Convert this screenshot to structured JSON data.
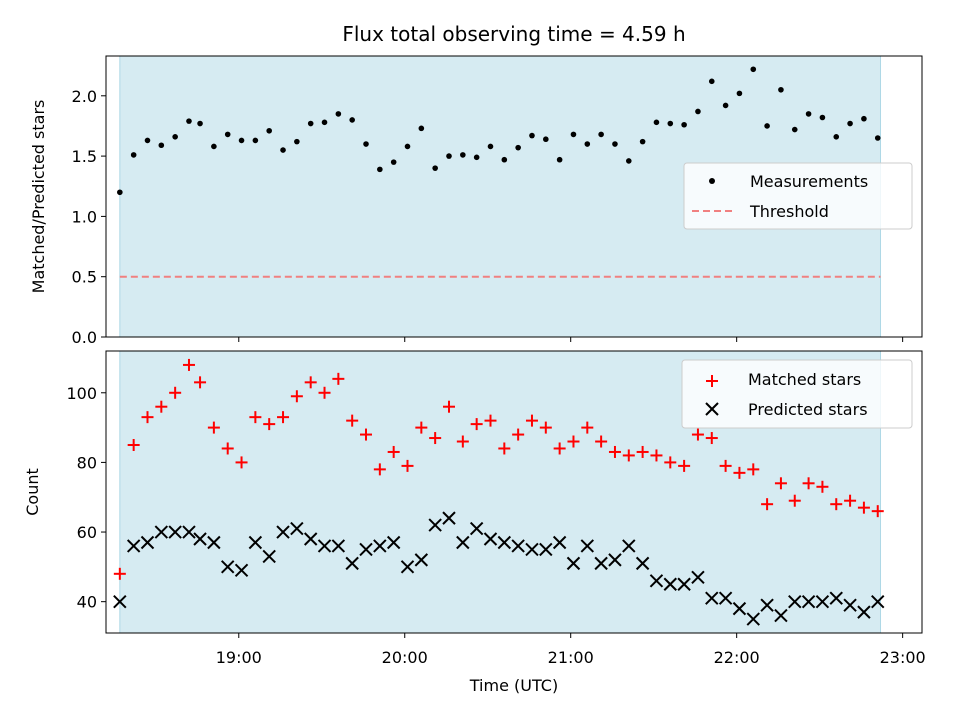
{
  "chart_data": [
    {
      "type": "scatter",
      "title": "Flux total observing time = 4.59 h",
      "xlabel": "",
      "ylabel": "Matched/Predicted stars",
      "ylim": [
        0.0,
        2.33
      ],
      "yticks": [
        0.0,
        0.5,
        1.0,
        1.5,
        2.0
      ],
      "yticklabels": [
        "0.0",
        "0.5",
        "1.0",
        "1.5",
        "2.0"
      ],
      "xlim": [
        "18:12",
        "23:07"
      ],
      "shaded_span": [
        "18:17",
        "22:52"
      ],
      "shade_color": "#add8e6",
      "grid": false,
      "legend_position": "center-right",
      "series": [
        {
          "name": "Measurements",
          "marker": "dot",
          "color": "#000000",
          "x": [
            "18:17",
            "18:22",
            "18:27",
            "18:32",
            "18:37",
            "18:42",
            "18:46",
            "18:51",
            "18:56",
            "19:01",
            "19:06",
            "19:11",
            "19:16",
            "19:21",
            "19:26",
            "19:31",
            "19:36",
            "19:41",
            "19:46",
            "19:51",
            "19:56",
            "20:01",
            "20:06",
            "20:11",
            "20:16",
            "20:21",
            "20:26",
            "20:31",
            "20:36",
            "20:41",
            "20:46",
            "20:51",
            "20:56",
            "21:01",
            "21:06",
            "21:11",
            "21:16",
            "21:21",
            "21:26",
            "21:31",
            "21:36",
            "21:41",
            "21:46",
            "21:51",
            "21:56",
            "22:01",
            "22:06",
            "22:11",
            "22:16",
            "22:21",
            "22:26",
            "22:31",
            "22:36",
            "22:41",
            "22:46",
            "22:51"
          ],
          "y": [
            1.2,
            1.51,
            1.63,
            1.59,
            1.66,
            1.79,
            1.77,
            1.58,
            1.68,
            1.63,
            1.63,
            1.71,
            1.55,
            1.62,
            1.77,
            1.78,
            1.85,
            1.8,
            1.6,
            1.39,
            1.45,
            1.58,
            1.73,
            1.4,
            1.5,
            1.51,
            1.49,
            1.58,
            1.47,
            1.57,
            1.67,
            1.64,
            1.47,
            1.68,
            1.6,
            1.68,
            1.6,
            1.46,
            1.62,
            1.78,
            1.77,
            1.76,
            1.87,
            2.12,
            1.92,
            2.02,
            2.22,
            1.75,
            2.05,
            1.72,
            1.85,
            1.82,
            1.66,
            1.77,
            1.81,
            1.65
          ]
        },
        {
          "name": "Threshold",
          "type": "line",
          "style": "dashed",
          "color": "#f08080",
          "x": [
            "18:17",
            "22:52"
          ],
          "y": [
            0.5,
            0.5
          ]
        }
      ]
    },
    {
      "type": "scatter",
      "xlabel": "Time (UTC)",
      "ylabel": "Count",
      "ylim": [
        31,
        112
      ],
      "yticks": [
        40,
        60,
        80,
        100
      ],
      "yticklabels": [
        "40",
        "60",
        "80",
        "100"
      ],
      "xlim": [
        "18:12",
        "23:07"
      ],
      "xticks": [
        "19:00",
        "20:00",
        "21:00",
        "22:00",
        "23:00"
      ],
      "xticklabels": [
        "19:00",
        "20:00",
        "21:00",
        "22:00",
        "23:00"
      ],
      "shaded_span": [
        "18:17",
        "22:52"
      ],
      "shade_color": "#add8e6",
      "grid": false,
      "legend_position": "upper-right",
      "series": [
        {
          "name": "Matched stars",
          "marker": "plus",
          "color": "#ff0000",
          "x": [
            "18:17",
            "18:22",
            "18:27",
            "18:32",
            "18:37",
            "18:42",
            "18:46",
            "18:51",
            "18:56",
            "19:01",
            "19:06",
            "19:11",
            "19:16",
            "19:21",
            "19:26",
            "19:31",
            "19:36",
            "19:41",
            "19:46",
            "19:51",
            "19:56",
            "20:01",
            "20:06",
            "20:11",
            "20:16",
            "20:21",
            "20:26",
            "20:31",
            "20:36",
            "20:41",
            "20:46",
            "20:51",
            "20:56",
            "21:01",
            "21:06",
            "21:11",
            "21:16",
            "21:21",
            "21:26",
            "21:31",
            "21:36",
            "21:41",
            "21:46",
            "21:51",
            "21:56",
            "22:01",
            "22:06",
            "22:11",
            "22:16",
            "22:21",
            "22:26",
            "22:31",
            "22:36",
            "22:41",
            "22:46",
            "22:51"
          ],
          "y": [
            48,
            85,
            93,
            96,
            100,
            108,
            103,
            90,
            84,
            80,
            93,
            91,
            93,
            99,
            103,
            100,
            104,
            92,
            88,
            78,
            83,
            79,
            90,
            87,
            96,
            86,
            91,
            92,
            84,
            88,
            92,
            90,
            84,
            86,
            90,
            86,
            83,
            82,
            83,
            82,
            80,
            79,
            88,
            87,
            79,
            77,
            78,
            68,
            74,
            69,
            74,
            73,
            68,
            69,
            67,
            66
          ]
        },
        {
          "name": "Predicted stars",
          "marker": "x",
          "color": "#000000",
          "x": [
            "18:17",
            "18:22",
            "18:27",
            "18:32",
            "18:37",
            "18:42",
            "18:46",
            "18:51",
            "18:56",
            "19:01",
            "19:06",
            "19:11",
            "19:16",
            "19:21",
            "19:26",
            "19:31",
            "19:36",
            "19:41",
            "19:46",
            "19:51",
            "19:56",
            "20:01",
            "20:06",
            "20:11",
            "20:16",
            "20:21",
            "20:26",
            "20:31",
            "20:36",
            "20:41",
            "20:46",
            "20:51",
            "20:56",
            "21:01",
            "21:06",
            "21:11",
            "21:16",
            "21:21",
            "21:26",
            "21:31",
            "21:36",
            "21:41",
            "21:46",
            "21:51",
            "21:56",
            "22:01",
            "22:06",
            "22:11",
            "22:16",
            "22:21",
            "22:26",
            "22:31",
            "22:36",
            "22:41",
            "22:46",
            "22:51"
          ],
          "y": [
            40,
            56,
            57,
            60,
            60,
            60,
            58,
            57,
            50,
            49,
            57,
            53,
            60,
            61,
            58,
            56,
            56,
            51,
            55,
            56,
            57,
            50,
            52,
            62,
            64,
            57,
            61,
            58,
            57,
            56,
            55,
            55,
            57,
            51,
            56,
            51,
            52,
            56,
            51,
            46,
            45,
            45,
            47,
            41,
            41,
            38,
            35,
            39,
            36,
            40,
            40,
            40,
            41,
            39,
            37,
            40
          ]
        }
      ]
    }
  ]
}
